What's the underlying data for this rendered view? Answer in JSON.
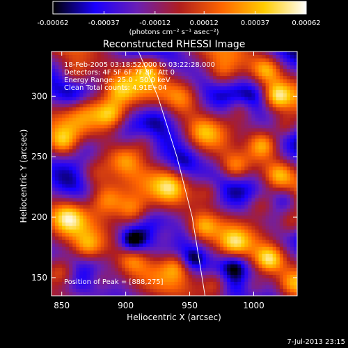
{
  "chart_data": {
    "type": "heatmap",
    "title": "Reconstructed RHESSI Image",
    "xlabel": "Heliocentric X (arcsec)",
    "ylabel": "Heliocentric Y (arcsec)",
    "xlim": [
      842,
      1034
    ],
    "ylim": [
      135,
      337
    ],
    "x_ticks": [
      850,
      900,
      950,
      1000
    ],
    "y_ticks": [
      150,
      200,
      250,
      300
    ],
    "colorbar": {
      "ticks": [
        "-0.00062",
        "-0.00037",
        "-0.00012",
        "0.00012",
        "0.00037",
        "0.00062"
      ],
      "unit_label": "(photons cm⁻² s⁻¹ asec⁻²)",
      "range": [
        -0.00062,
        0.00062
      ],
      "colormap": [
        "#000000",
        "#1a00ff",
        "#6a1fb4",
        "#b01e1e",
        "#ff6600",
        "#ffcc00",
        "#ffffff"
      ]
    },
    "annotations": [
      "18-Feb-2005 03:18:52.000 to 03:22:28.000",
      "Detectors: 4F 5F 6F 7F 8F, Att 0",
      "Energy Range: 25.0 - 50.0 keV",
      "Clean     Total counts: 4.91E+04"
    ],
    "peak_label": "Position of Peak = [888,275]",
    "peak": [
      888,
      275
    ],
    "limb": [
      [
        910,
        337
      ],
      [
        925,
        300
      ],
      [
        940,
        250
      ],
      [
        952,
        200
      ],
      [
        962,
        135
      ]
    ],
    "blobs": [
      {
        "x": 888,
        "y": 285,
        "v": 1.0,
        "s": 9
      },
      {
        "x": 868,
        "y": 290,
        "v": 0.75,
        "s": 11
      },
      {
        "x": 895,
        "y": 305,
        "v": 0.65,
        "s": 9
      },
      {
        "x": 860,
        "y": 318,
        "v": 0.7,
        "s": 9
      },
      {
        "x": 918,
        "y": 322,
        "v": 0.75,
        "s": 9
      },
      {
        "x": 945,
        "y": 300,
        "v": 0.55,
        "s": 10
      },
      {
        "x": 975,
        "y": 318,
        "v": 0.6,
        "s": 9
      },
      {
        "x": 1010,
        "y": 322,
        "v": 0.7,
        "s": 8
      },
      {
        "x": 1018,
        "y": 300,
        "v": 0.85,
        "s": 8
      },
      {
        "x": 990,
        "y": 290,
        "v": 0.6,
        "s": 8
      },
      {
        "x": 960,
        "y": 270,
        "v": 0.55,
        "s": 9
      },
      {
        "x": 1008,
        "y": 260,
        "v": 0.7,
        "s": 8
      },
      {
        "x": 1025,
        "y": 275,
        "v": 0.5,
        "s": 7
      },
      {
        "x": 915,
        "y": 262,
        "v": 0.65,
        "s": 9
      },
      {
        "x": 850,
        "y": 262,
        "v": 0.55,
        "s": 8
      },
      {
        "x": 875,
        "y": 235,
        "v": 0.6,
        "s": 9
      },
      {
        "x": 900,
        "y": 248,
        "v": 0.55,
        "s": 9
      },
      {
        "x": 885,
        "y": 215,
        "v": 0.9,
        "s": 10
      },
      {
        "x": 905,
        "y": 205,
        "v": 0.8,
        "s": 9
      },
      {
        "x": 935,
        "y": 225,
        "v": 0.6,
        "s": 9
      },
      {
        "x": 965,
        "y": 222,
        "v": 0.55,
        "s": 8
      },
      {
        "x": 985,
        "y": 240,
        "v": 0.7,
        "s": 8
      },
      {
        "x": 1020,
        "y": 235,
        "v": 0.65,
        "s": 8
      },
      {
        "x": 1005,
        "y": 210,
        "v": 0.55,
        "s": 8
      },
      {
        "x": 960,
        "y": 192,
        "v": 0.6,
        "s": 8
      },
      {
        "x": 930,
        "y": 185,
        "v": 0.5,
        "s": 8
      },
      {
        "x": 855,
        "y": 200,
        "v": 0.7,
        "s": 9
      },
      {
        "x": 870,
        "y": 175,
        "v": 0.55,
        "s": 8
      },
      {
        "x": 1030,
        "y": 195,
        "v": 0.6,
        "s": 8
      },
      {
        "x": 985,
        "y": 178,
        "v": 0.55,
        "s": 8
      },
      {
        "x": 1012,
        "y": 165,
        "v": 0.9,
        "s": 8
      },
      {
        "x": 940,
        "y": 160,
        "v": 0.55,
        "s": 8
      },
      {
        "x": 905,
        "y": 165,
        "v": 0.45,
        "s": 8
      },
      {
        "x": 850,
        "y": 155,
        "v": 0.85,
        "s": 9
      },
      {
        "x": 880,
        "y": 148,
        "v": 0.5,
        "s": 8
      },
      {
        "x": 970,
        "y": 145,
        "v": 0.65,
        "s": 8
      },
      {
        "x": 1000,
        "y": 143,
        "v": 0.55,
        "s": 8
      },
      {
        "x": 1030,
        "y": 145,
        "v": 0.5,
        "s": 8
      },
      {
        "x": 870,
        "y": 258,
        "v": -0.55,
        "s": 9
      },
      {
        "x": 925,
        "y": 285,
        "v": -0.45,
        "s": 10
      },
      {
        "x": 905,
        "y": 180,
        "v": -0.75,
        "s": 7
      },
      {
        "x": 988,
        "y": 262,
        "v": -0.4,
        "s": 9
      },
      {
        "x": 952,
        "y": 165,
        "v": -0.6,
        "s": 7
      },
      {
        "x": 1000,
        "y": 300,
        "v": -0.4,
        "s": 9
      },
      {
        "x": 860,
        "y": 300,
        "v": -0.35,
        "s": 8
      },
      {
        "x": 945,
        "y": 245,
        "v": -0.35,
        "s": 8
      },
      {
        "x": 1025,
        "y": 215,
        "v": -0.45,
        "s": 7
      },
      {
        "x": 985,
        "y": 160,
        "v": -0.5,
        "s": 7
      }
    ]
  },
  "footer": {
    "date": "7-Jul-2013 23:15"
  }
}
